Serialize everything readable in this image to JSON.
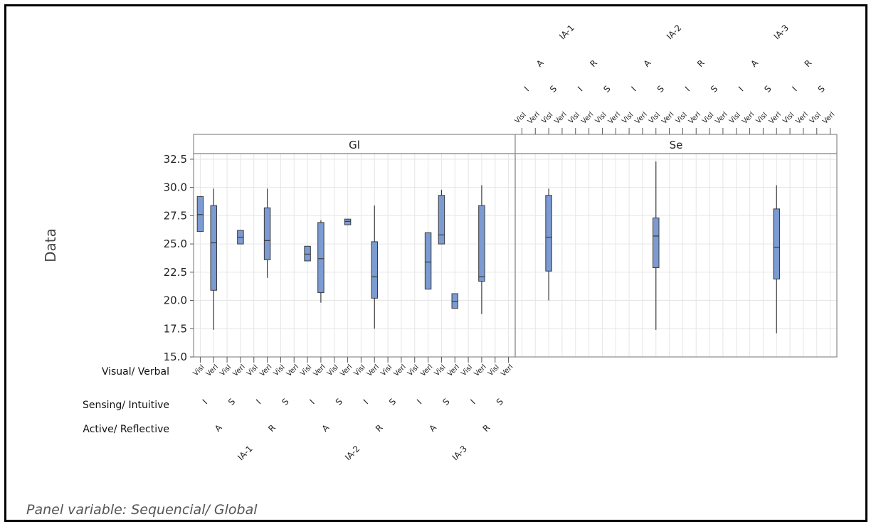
{
  "chart_data": {
    "type": "boxplot",
    "ylabel": "Data",
    "ylim": [
      15.0,
      33.0
    ],
    "yticks": [
      "32.5",
      "30.0",
      "27.5",
      "25.0",
      "22.5",
      "20.0",
      "17.5",
      "15.0"
    ],
    "panel_variable_note": "Panel variable: Sequencial/ Global",
    "panels": [
      "Gl",
      "Se"
    ],
    "factor_labels": {
      "visual_verbal": "Visual/ Verbal",
      "sensing_intuitive": "Sensing/ Intuitive",
      "active_reflective": "Active/ Reflective"
    },
    "level_text": {
      "vis_verb": [
        "Visl",
        "Verl"
      ],
      "sens_int": [
        "I",
        "S"
      ],
      "act_ref": [
        "A",
        "R"
      ],
      "groups": [
        "IA-1",
        "IA-2",
        "IA-3"
      ]
    },
    "series": [
      {
        "panel": "Gl",
        "group": "IA-1",
        "ar": "A",
        "si": "I",
        "vv": 0,
        "min": 26.1,
        "q1": 26.1,
        "median": 27.6,
        "q3": 29.2,
        "max": 29.2
      },
      {
        "panel": "Gl",
        "group": "IA-1",
        "ar": "A",
        "si": "I",
        "vv": 1,
        "min": 17.4,
        "q1": 20.9,
        "median": 25.1,
        "q3": 28.4,
        "max": 29.9
      },
      {
        "panel": "Gl",
        "group": "IA-1",
        "ar": "A",
        "si": "S",
        "vv": 1,
        "min": 25.0,
        "q1": 25.0,
        "median": 25.6,
        "q3": 26.2,
        "max": 26.2
      },
      {
        "panel": "Gl",
        "group": "IA-1",
        "ar": "R",
        "si": "I",
        "vv": 1,
        "min": 22.0,
        "q1": 23.6,
        "median": 25.3,
        "q3": 28.2,
        "max": 29.9
      },
      {
        "panel": "Gl",
        "group": "IA-2",
        "ar": "A",
        "si": "I",
        "vv": 0,
        "min": 23.5,
        "q1": 23.5,
        "median": 24.1,
        "q3": 24.8,
        "max": 24.8
      },
      {
        "panel": "Gl",
        "group": "IA-2",
        "ar": "A",
        "si": "I",
        "vv": 1,
        "min": 19.8,
        "q1": 20.7,
        "median": 23.7,
        "q3": 26.9,
        "max": 27.1
      },
      {
        "panel": "Gl",
        "group": "IA-2",
        "ar": "A",
        "si": "S",
        "vv": 1,
        "min": 26.7,
        "q1": 26.7,
        "median": 27.0,
        "q3": 27.2,
        "max": 27.2
      },
      {
        "panel": "Gl",
        "group": "IA-2",
        "ar": "R",
        "si": "I",
        "vv": 1,
        "min": 17.5,
        "q1": 20.2,
        "median": 22.1,
        "q3": 25.2,
        "max": 28.4
      },
      {
        "panel": "Gl",
        "group": "IA-3",
        "ar": "A",
        "si": "I",
        "vv": 1,
        "min": 21.0,
        "q1": 21.0,
        "median": 23.4,
        "q3": 26.0,
        "max": 26.0
      },
      {
        "panel": "Gl",
        "group": "IA-3",
        "ar": "A",
        "si": "S",
        "vv": 0,
        "min": 25.0,
        "q1": 25.0,
        "median": 25.8,
        "q3": 29.3,
        "max": 29.8
      },
      {
        "panel": "Gl",
        "group": "IA-3",
        "ar": "A",
        "si": "S",
        "vv": 1,
        "min": 19.3,
        "q1": 19.3,
        "median": 19.9,
        "q3": 20.6,
        "max": 20.6
      },
      {
        "panel": "Gl",
        "group": "IA-3",
        "ar": "R",
        "si": "I",
        "vv": 1,
        "min": 18.8,
        "q1": 21.7,
        "median": 22.1,
        "q3": 28.4,
        "max": 30.2
      },
      {
        "panel": "Se",
        "group": "IA-1",
        "ar": "A",
        "si": "S",
        "vv": 0,
        "min": 20.0,
        "q1": 22.6,
        "median": 25.6,
        "q3": 29.3,
        "max": 29.9
      },
      {
        "panel": "Se",
        "group": "IA-2",
        "ar": "A",
        "si": "S",
        "vv": 0,
        "min": 17.4,
        "q1": 22.9,
        "median": 25.7,
        "q3": 27.3,
        "max": 32.3
      },
      {
        "panel": "Se",
        "group": "IA-3",
        "ar": "A",
        "si": "S",
        "vv": 1,
        "min": 17.1,
        "q1": 21.9,
        "median": 24.7,
        "q3": 28.1,
        "max": 30.2
      }
    ]
  },
  "colors": {
    "box_fill": "#7b9bd2",
    "box_stroke": "#3a3a3a",
    "grid": "#e6e6e6",
    "panel_border": "#8a8a8a"
  }
}
